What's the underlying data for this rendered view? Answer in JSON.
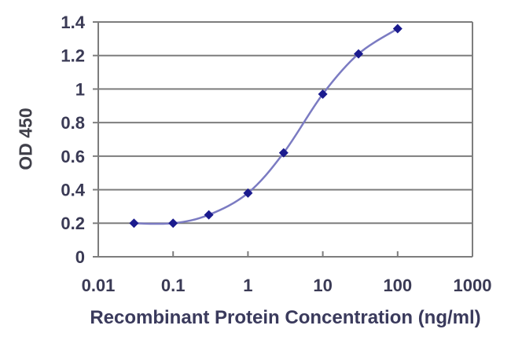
{
  "window": {
    "background": "#ffffff"
  },
  "chart_data": {
    "type": "line",
    "line_style": "smoothed",
    "marker_style": "diamond",
    "title": "",
    "xlabel": "Recombinant Protein Concentration (ng/ml)",
    "ylabel": "OD 450",
    "x_scale": "log10",
    "xlim": [
      0.01,
      1000
    ],
    "ylim": [
      0,
      1.4
    ],
    "x_ticks": [
      0.01,
      0.1,
      1,
      10,
      100,
      1000
    ],
    "x_tick_labels": [
      "0.01",
      "0.1",
      "1",
      "10",
      "100",
      "1000"
    ],
    "y_ticks": [
      0,
      0.2,
      0.4,
      0.6,
      0.8,
      1,
      1.2,
      1.4
    ],
    "y_tick_labels": [
      "0",
      "0.2",
      "0.4",
      "0.6",
      "0.8",
      "1",
      "1.2",
      "1.4"
    ],
    "grid": "horizontal-only",
    "legend": "none",
    "series": [
      {
        "x": [
          0.03,
          0.1,
          0.3,
          1,
          3,
          10,
          30,
          100
        ],
        "y": [
          0.2,
          0.2,
          0.25,
          0.38,
          0.62,
          0.97,
          1.21,
          1.36
        ]
      }
    ],
    "colors": {
      "line": "#7b7bc2",
      "marker": "#1b1b8e",
      "grid": "#7d7d7d",
      "axis": "#7d7d7d",
      "tick_text": "#3a3a55",
      "background": "#ffffff"
    }
  }
}
